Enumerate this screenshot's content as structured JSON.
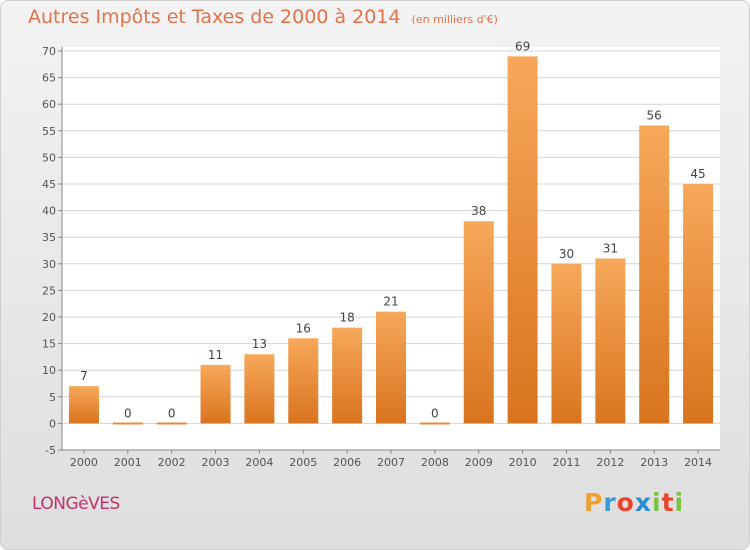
{
  "header": {
    "title": "Autres Impôts et Taxes de 2000 à 2014",
    "subtitle": "(en milliers d'€)"
  },
  "footer": {
    "place": "LONGèVES",
    "brand": "Proxiti",
    "brand_colors": [
      "#f0a030",
      "#3a9bd8",
      "#e8452c",
      "#2a8fd0",
      "#7cc242",
      "#e8452c",
      "#7cc242"
    ]
  },
  "colors": {
    "bar_light": "#f7a85a",
    "bar_dark": "#d9741e",
    "grid": "#d4d4d4",
    "axis_text": "#555555",
    "title": "#e0734a"
  },
  "chart_data": {
    "type": "bar",
    "categories": [
      "2000",
      "2001",
      "2002",
      "2003",
      "2004",
      "2005",
      "2006",
      "2007",
      "2008",
      "2009",
      "2010",
      "2011",
      "2012",
      "2013",
      "2014"
    ],
    "values": [
      7,
      0,
      0,
      11,
      13,
      16,
      18,
      21,
      0,
      38,
      69,
      30,
      31,
      56,
      45
    ],
    "data_labels": [
      "7",
      "0",
      "0",
      "11",
      "13",
      "16",
      "18",
      "21",
      "0",
      "38",
      "69",
      "30",
      "31",
      "56",
      "45"
    ],
    "yticks": [
      -5,
      0,
      5,
      10,
      15,
      20,
      25,
      30,
      35,
      40,
      45,
      50,
      55,
      60,
      65,
      70
    ],
    "ylim": [
      -5,
      70
    ],
    "grid": true,
    "xlabel": "",
    "ylabel": ""
  }
}
